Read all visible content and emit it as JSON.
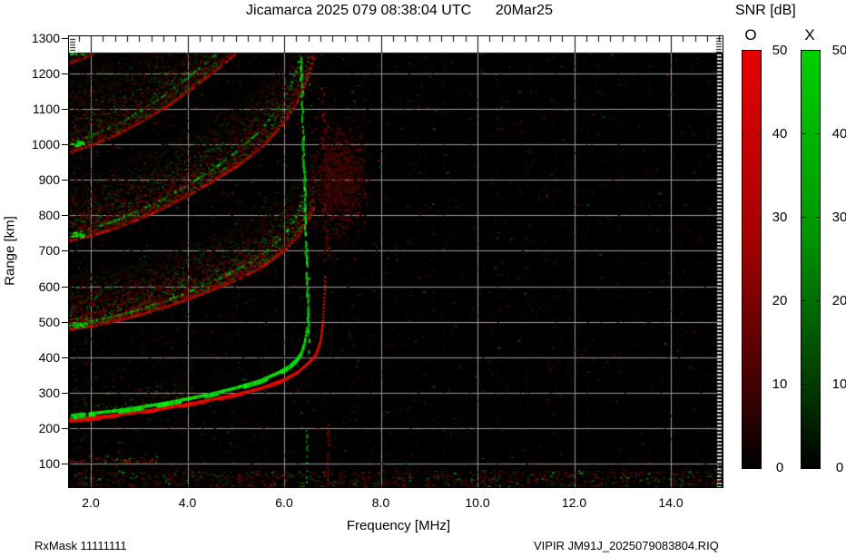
{
  "title": {
    "left": "Jicamarca 2025 079 08:38:04 UTC",
    "right": "20Mar25"
  },
  "footer": {
    "left": "RxMask 11111111",
    "right": "VIPIR  JM91J_2025079083804.RIQ"
  },
  "colorbar": {
    "title": "SNR [dB]",
    "o_label": "O",
    "x_label": "X",
    "tick_labels": [
      "50",
      "40",
      "30",
      "20",
      "10",
      "0"
    ],
    "o_top_color": "#e80000",
    "x_top_color": "#00cf00",
    "bottom_color": "#000000"
  },
  "chart_data": {
    "type": "heatmap",
    "subtype": "ionogram",
    "title": "Jicamarca 2025 079 08:38:04 UTC 20Mar25",
    "station_file": "VIPIR JM91J_2025079083804.RIQ",
    "rx_mask": "RxMask 11111111",
    "grid": true,
    "background_color": "#000000",
    "gridline_color": "#9c9c9c",
    "x_axis": {
      "label": "Frequency [MHz]",
      "min": 1.55,
      "max": 15.07,
      "tick_values": [
        2,
        4,
        6,
        8,
        10,
        12,
        14
      ],
      "tick_labels": [
        "2.0",
        "4.0",
        "6.0",
        "8.0",
        "10.0",
        "12.0",
        "14.0"
      ],
      "minor_tick_step": 0.25
    },
    "y_axis": {
      "label": "Range [km]",
      "min": 34,
      "max": 1300,
      "tick_values": [
        100,
        200,
        300,
        400,
        500,
        600,
        700,
        800,
        900,
        1000,
        1100,
        1200,
        1300
      ],
      "gridline_step_km": 100
    },
    "snr_colorbar": {
      "label": "SNR [dB]",
      "min_db": 0,
      "max_db": 50,
      "tick_step_db": 10,
      "o_mode_color": "#e80000",
      "x_mode_color": "#00cf00"
    },
    "traces": {
      "o_mode": {
        "color": "#dd0000",
        "critical_frequency_mhz": 6.85,
        "points": [
          [
            1.55,
            228
          ],
          [
            2.0,
            233
          ],
          [
            2.5,
            240
          ],
          [
            3.0,
            249
          ],
          [
            3.5,
            259
          ],
          [
            4.0,
            271
          ],
          [
            4.5,
            284
          ],
          [
            5.0,
            298
          ],
          [
            5.5,
            315
          ],
          [
            6.0,
            340
          ],
          [
            6.3,
            362
          ],
          [
            6.5,
            385
          ],
          [
            6.65,
            408
          ],
          [
            6.75,
            445
          ],
          [
            6.8,
            500
          ],
          [
            6.83,
            570
          ],
          [
            6.85,
            628
          ]
        ]
      },
      "x_mode": {
        "color": "#00cc00",
        "critical_frequency_mhz": 6.52,
        "points": [
          [
            1.55,
            234
          ],
          [
            2.0,
            240
          ],
          [
            2.5,
            247
          ],
          [
            3.0,
            257
          ],
          [
            3.5,
            268
          ],
          [
            4.0,
            281
          ],
          [
            4.5,
            295
          ],
          [
            5.0,
            312
          ],
          [
            5.5,
            332
          ],
          [
            5.9,
            356
          ],
          [
            6.1,
            372
          ],
          [
            6.25,
            390
          ],
          [
            6.35,
            410
          ],
          [
            6.42,
            438
          ],
          [
            6.47,
            480
          ],
          [
            6.5,
            550
          ],
          [
            6.52,
            628
          ]
        ]
      }
    },
    "multiple_hops": {
      "count": 5,
      "base_range_km": [
        235,
        485,
        730,
        975,
        1220
      ],
      "range_offset_km_per_hop": 22
    },
    "e_region_echo": {
      "range_km": 110,
      "freq_min_mhz": 1.55,
      "freq_max_mhz": 3.4
    },
    "spread_columns": {
      "x_mode_freq_mhz": 6.5,
      "o_mode_freq_mhz": 6.85,
      "range_span_km": [
        420,
        1250
      ]
    },
    "spread_f_cloud": {
      "center_freq_mhz": 7.1,
      "center_range_km": 900
    },
    "rfi_freqs_mhz": [
      3.3,
      4.25,
      4.95,
      5.3,
      5.62,
      6.18,
      6.95,
      7.35,
      7.8,
      8.3,
      8.75,
      9.3,
      9.85,
      10.4,
      11.0,
      11.6,
      12.25,
      12.9,
      13.55,
      14.2,
      14.75
    ]
  }
}
